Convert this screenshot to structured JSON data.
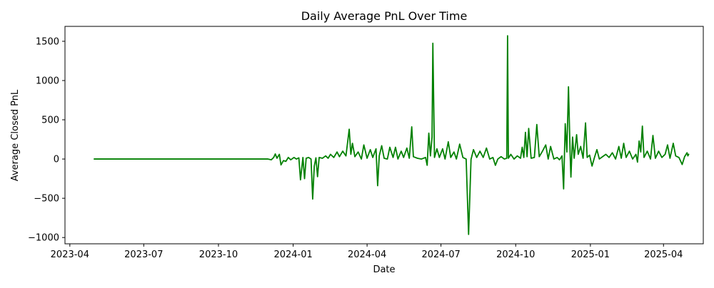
{
  "chart_data": {
    "type": "line",
    "title": "Daily Average PnL Over Time",
    "xlabel": "Date",
    "ylabel": "Average Closed PnL",
    "x_ticks": [
      "2023-04",
      "2023-07",
      "2023-10",
      "2024-01",
      "2024-04",
      "2024-07",
      "2024-10",
      "2025-01",
      "2025-04"
    ],
    "x_tick_dates": [
      "2023-04-01",
      "2023-07-01",
      "2023-10-01",
      "2024-01-01",
      "2024-04-01",
      "2024-07-01",
      "2024-10-01",
      "2025-01-01",
      "2025-04-01"
    ],
    "y_ticks": [
      "−1000",
      "−500",
      "0",
      "500",
      "1000",
      "1500"
    ],
    "y_tick_values": [
      -1000,
      -500,
      0,
      500,
      1000,
      1500
    ],
    "xlim": [
      "2023-03-26",
      "2025-05-20"
    ],
    "ylim": [
      -1080,
      1690
    ],
    "grid": false,
    "line_color": "#008000",
    "series": [
      {
        "points": [
          [
            "2023-05-01",
            0
          ],
          [
            "2023-12-01",
            0
          ],
          [
            "2023-12-05",
            -10
          ],
          [
            "2023-12-08",
            20
          ],
          [
            "2023-12-10",
            65
          ],
          [
            "2023-12-12",
            10
          ],
          [
            "2023-12-15",
            60
          ],
          [
            "2023-12-17",
            -75
          ],
          [
            "2023-12-20",
            -20
          ],
          [
            "2023-12-23",
            -30
          ],
          [
            "2023-12-26",
            20
          ],
          [
            "2023-12-29",
            -10
          ],
          [
            "2024-01-02",
            20
          ],
          [
            "2024-01-05",
            0
          ],
          [
            "2024-01-08",
            15
          ],
          [
            "2024-01-10",
            -265
          ],
          [
            "2024-01-13",
            20
          ],
          [
            "2024-01-15",
            -250
          ],
          [
            "2024-01-17",
            10
          ],
          [
            "2024-01-20",
            20
          ],
          [
            "2024-01-23",
            0
          ],
          [
            "2024-01-25",
            -510
          ],
          [
            "2024-01-27",
            -90
          ],
          [
            "2024-01-29",
            15
          ],
          [
            "2024-01-31",
            -225
          ],
          [
            "2024-02-02",
            20
          ],
          [
            "2024-02-06",
            10
          ],
          [
            "2024-02-10",
            40
          ],
          [
            "2024-02-13",
            10
          ],
          [
            "2024-02-16",
            60
          ],
          [
            "2024-02-20",
            20
          ],
          [
            "2024-02-24",
            90
          ],
          [
            "2024-02-27",
            30
          ],
          [
            "2024-03-02",
            100
          ],
          [
            "2024-03-06",
            40
          ],
          [
            "2024-03-10",
            380
          ],
          [
            "2024-03-12",
            60
          ],
          [
            "2024-03-14",
            200
          ],
          [
            "2024-03-17",
            30
          ],
          [
            "2024-03-21",
            90
          ],
          [
            "2024-03-25",
            0
          ],
          [
            "2024-03-28",
            180
          ],
          [
            "2024-04-01",
            10
          ],
          [
            "2024-04-05",
            120
          ],
          [
            "2024-04-08",
            20
          ],
          [
            "2024-04-12",
            130
          ],
          [
            "2024-04-14",
            -340
          ],
          [
            "2024-04-16",
            40
          ],
          [
            "2024-04-19",
            170
          ],
          [
            "2024-04-22",
            10
          ],
          [
            "2024-04-26",
            0
          ],
          [
            "2024-04-29",
            150
          ],
          [
            "2024-05-03",
            20
          ],
          [
            "2024-05-06",
            150
          ],
          [
            "2024-05-09",
            0
          ],
          [
            "2024-05-13",
            100
          ],
          [
            "2024-05-16",
            20
          ],
          [
            "2024-05-20",
            140
          ],
          [
            "2024-05-23",
            10
          ],
          [
            "2024-05-26",
            410
          ],
          [
            "2024-05-28",
            30
          ],
          [
            "2024-06-02",
            10
          ],
          [
            "2024-06-07",
            0
          ],
          [
            "2024-06-12",
            20
          ],
          [
            "2024-06-14",
            -80
          ],
          [
            "2024-06-16",
            330
          ],
          [
            "2024-06-18",
            40
          ],
          [
            "2024-06-20",
            280
          ],
          [
            "2024-06-21",
            1475
          ],
          [
            "2024-06-23",
            20
          ],
          [
            "2024-06-26",
            130
          ],
          [
            "2024-06-29",
            20
          ],
          [
            "2024-07-03",
            130
          ],
          [
            "2024-07-06",
            0
          ],
          [
            "2024-07-10",
            220
          ],
          [
            "2024-07-13",
            20
          ],
          [
            "2024-07-17",
            90
          ],
          [
            "2024-07-20",
            0
          ],
          [
            "2024-07-24",
            190
          ],
          [
            "2024-07-28",
            20
          ],
          [
            "2024-08-01",
            0
          ],
          [
            "2024-08-04",
            -960
          ],
          [
            "2024-08-07",
            -5
          ],
          [
            "2024-08-10",
            120
          ],
          [
            "2024-08-14",
            20
          ],
          [
            "2024-08-18",
            100
          ],
          [
            "2024-08-22",
            20
          ],
          [
            "2024-08-26",
            140
          ],
          [
            "2024-08-30",
            0
          ],
          [
            "2024-09-03",
            20
          ],
          [
            "2024-09-06",
            -80
          ],
          [
            "2024-09-09",
            0
          ],
          [
            "2024-09-13",
            30
          ],
          [
            "2024-09-17",
            0
          ],
          [
            "2024-09-20",
            10
          ],
          [
            "2024-09-21",
            1570
          ],
          [
            "2024-09-22",
            10
          ],
          [
            "2024-09-25",
            60
          ],
          [
            "2024-09-29",
            0
          ],
          [
            "2024-10-03",
            40
          ],
          [
            "2024-10-07",
            10
          ],
          [
            "2024-10-09",
            150
          ],
          [
            "2024-10-11",
            20
          ],
          [
            "2024-10-13",
            340
          ],
          [
            "2024-10-15",
            30
          ],
          [
            "2024-10-17",
            390
          ],
          [
            "2024-10-20",
            10
          ],
          [
            "2024-10-24",
            20
          ],
          [
            "2024-10-27",
            440
          ],
          [
            "2024-10-30",
            30
          ],
          [
            "2024-11-03",
            100
          ],
          [
            "2024-11-07",
            180
          ],
          [
            "2024-11-10",
            0
          ],
          [
            "2024-11-13",
            160
          ],
          [
            "2024-11-17",
            0
          ],
          [
            "2024-11-21",
            20
          ],
          [
            "2024-11-24",
            -10
          ],
          [
            "2024-11-27",
            40
          ],
          [
            "2024-11-29",
            -380
          ],
          [
            "2024-12-01",
            450
          ],
          [
            "2024-12-03",
            90
          ],
          [
            "2024-12-05",
            920
          ],
          [
            "2024-12-07",
            80
          ],
          [
            "2024-12-08",
            -230
          ],
          [
            "2024-12-10",
            280
          ],
          [
            "2024-12-12",
            10
          ],
          [
            "2024-12-15",
            310
          ],
          [
            "2024-12-17",
            60
          ],
          [
            "2024-12-20",
            160
          ],
          [
            "2024-12-23",
            10
          ],
          [
            "2024-12-26",
            460
          ],
          [
            "2024-12-28",
            20
          ],
          [
            "2024-12-31",
            50
          ],
          [
            "2025-01-03",
            -90
          ],
          [
            "2025-01-06",
            20
          ],
          [
            "2025-01-09",
            120
          ],
          [
            "2025-01-12",
            0
          ],
          [
            "2025-01-16",
            30
          ],
          [
            "2025-01-20",
            60
          ],
          [
            "2025-01-24",
            20
          ],
          [
            "2025-01-28",
            80
          ],
          [
            "2025-02-01",
            0
          ],
          [
            "2025-02-05",
            160
          ],
          [
            "2025-02-08",
            10
          ],
          [
            "2025-02-11",
            200
          ],
          [
            "2025-02-14",
            20
          ],
          [
            "2025-02-18",
            100
          ],
          [
            "2025-02-22",
            0
          ],
          [
            "2025-02-26",
            60
          ],
          [
            "2025-02-28",
            -40
          ],
          [
            "2025-03-02",
            230
          ],
          [
            "2025-03-04",
            90
          ],
          [
            "2025-03-06",
            420
          ],
          [
            "2025-03-08",
            20
          ],
          [
            "2025-03-12",
            100
          ],
          [
            "2025-03-16",
            0
          ],
          [
            "2025-03-19",
            300
          ],
          [
            "2025-03-22",
            10
          ],
          [
            "2025-03-26",
            100
          ],
          [
            "2025-03-30",
            20
          ],
          [
            "2025-04-03",
            60
          ],
          [
            "2025-04-06",
            180
          ],
          [
            "2025-04-09",
            10
          ],
          [
            "2025-04-13",
            200
          ],
          [
            "2025-04-16",
            40
          ],
          [
            "2025-04-20",
            20
          ],
          [
            "2025-04-24",
            -70
          ],
          [
            "2025-04-27",
            30
          ],
          [
            "2025-04-30",
            80
          ],
          [
            "2025-05-01",
            40
          ],
          [
            "2025-05-02",
            60
          ]
        ]
      }
    ]
  }
}
